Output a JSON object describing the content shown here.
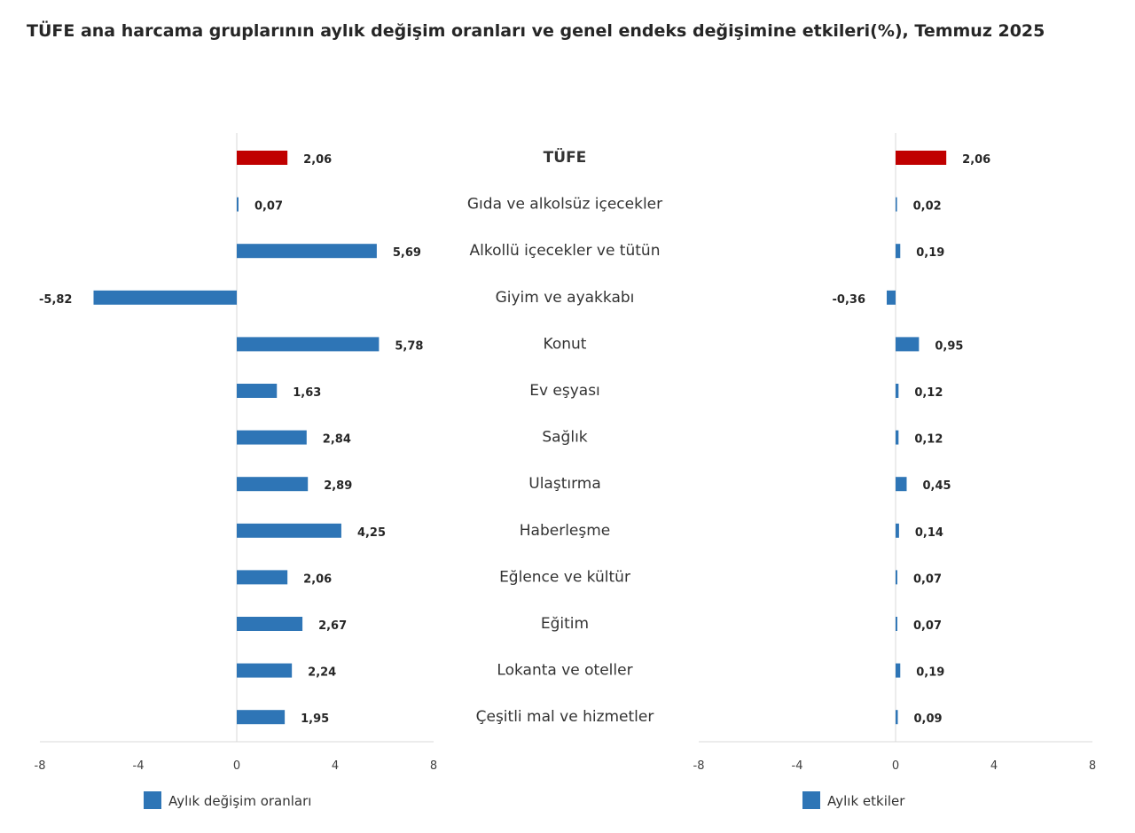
{
  "chart_title": "TÜFE ana harcama gruplarının aylık değişim oranları ve genel endeks değişimine etkileri(%), Temmuz 2025",
  "chart_data": [
    {
      "type": "bar",
      "orientation": "horizontal",
      "categories": [
        "TÜFE",
        "Gıda ve alkolsüz içecekler",
        "Alkollü içecekler ve tütün",
        "Giyim ve ayakkabı",
        "Konut",
        "Ev eşyası",
        "Sağlık",
        "Ulaştırma",
        "Haberleşme",
        "Eğlence ve kültür",
        "Eğitim",
        "Lokanta ve oteller",
        "Çeşitli mal ve hizmetler"
      ],
      "series": [
        {
          "name": "Aylık değişim oranları",
          "values": [
            2.06,
            0.07,
            5.69,
            -5.82,
            5.78,
            1.63,
            2.84,
            2.89,
            4.25,
            2.06,
            2.67,
            2.24,
            1.95
          ],
          "labels": [
            "2,06",
            "0,07",
            "5,69",
            "-5,82",
            "5,78",
            "1,63",
            "2,84",
            "2,89",
            "4,25",
            "2,06",
            "2,67",
            "2,24",
            "1,95"
          ]
        }
      ],
      "xlim": [
        -8,
        8
      ],
      "ticks": [
        -8,
        -4,
        0,
        4,
        8
      ],
      "tick_labels": [
        "-8",
        "-4",
        "0",
        "4",
        "8"
      ],
      "grid": false,
      "legend_position": "bottom-left"
    },
    {
      "type": "bar",
      "orientation": "horizontal",
      "categories": [
        "TÜFE",
        "Gıda ve alkolsüz içecekler",
        "Alkollü içecekler ve tütün",
        "Giyim ve ayakkabı",
        "Konut",
        "Ev eşyası",
        "Sağlık",
        "Ulaştırma",
        "Haberleşme",
        "Eğlence ve kültür",
        "Eğitim",
        "Lokanta ve oteller",
        "Çeşitli mal ve hizmetler"
      ],
      "series": [
        {
          "name": "Aylık etkiler",
          "values": [
            2.06,
            0.02,
            0.19,
            -0.36,
            0.95,
            0.12,
            0.12,
            0.45,
            0.14,
            0.07,
            0.07,
            0.19,
            0.09
          ],
          "labels": [
            "2,06",
            "0,02",
            "0,19",
            "-0,36",
            "0,95",
            "0,12",
            "0,12",
            "0,45",
            "0,14",
            "0,07",
            "0,07",
            "0,19",
            "0,09"
          ]
        }
      ],
      "xlim": [
        -8,
        8
      ],
      "ticks": [
        -8,
        -4,
        0,
        4,
        8
      ],
      "tick_labels": [
        "-8",
        "-4",
        "0",
        "4",
        "8"
      ],
      "grid": false,
      "legend_position": "bottom-left"
    }
  ],
  "colors": {
    "bar": "#2e75b6",
    "highlight_bar": "#c00000",
    "axis": "#d9d9d9",
    "text": "#262626"
  }
}
